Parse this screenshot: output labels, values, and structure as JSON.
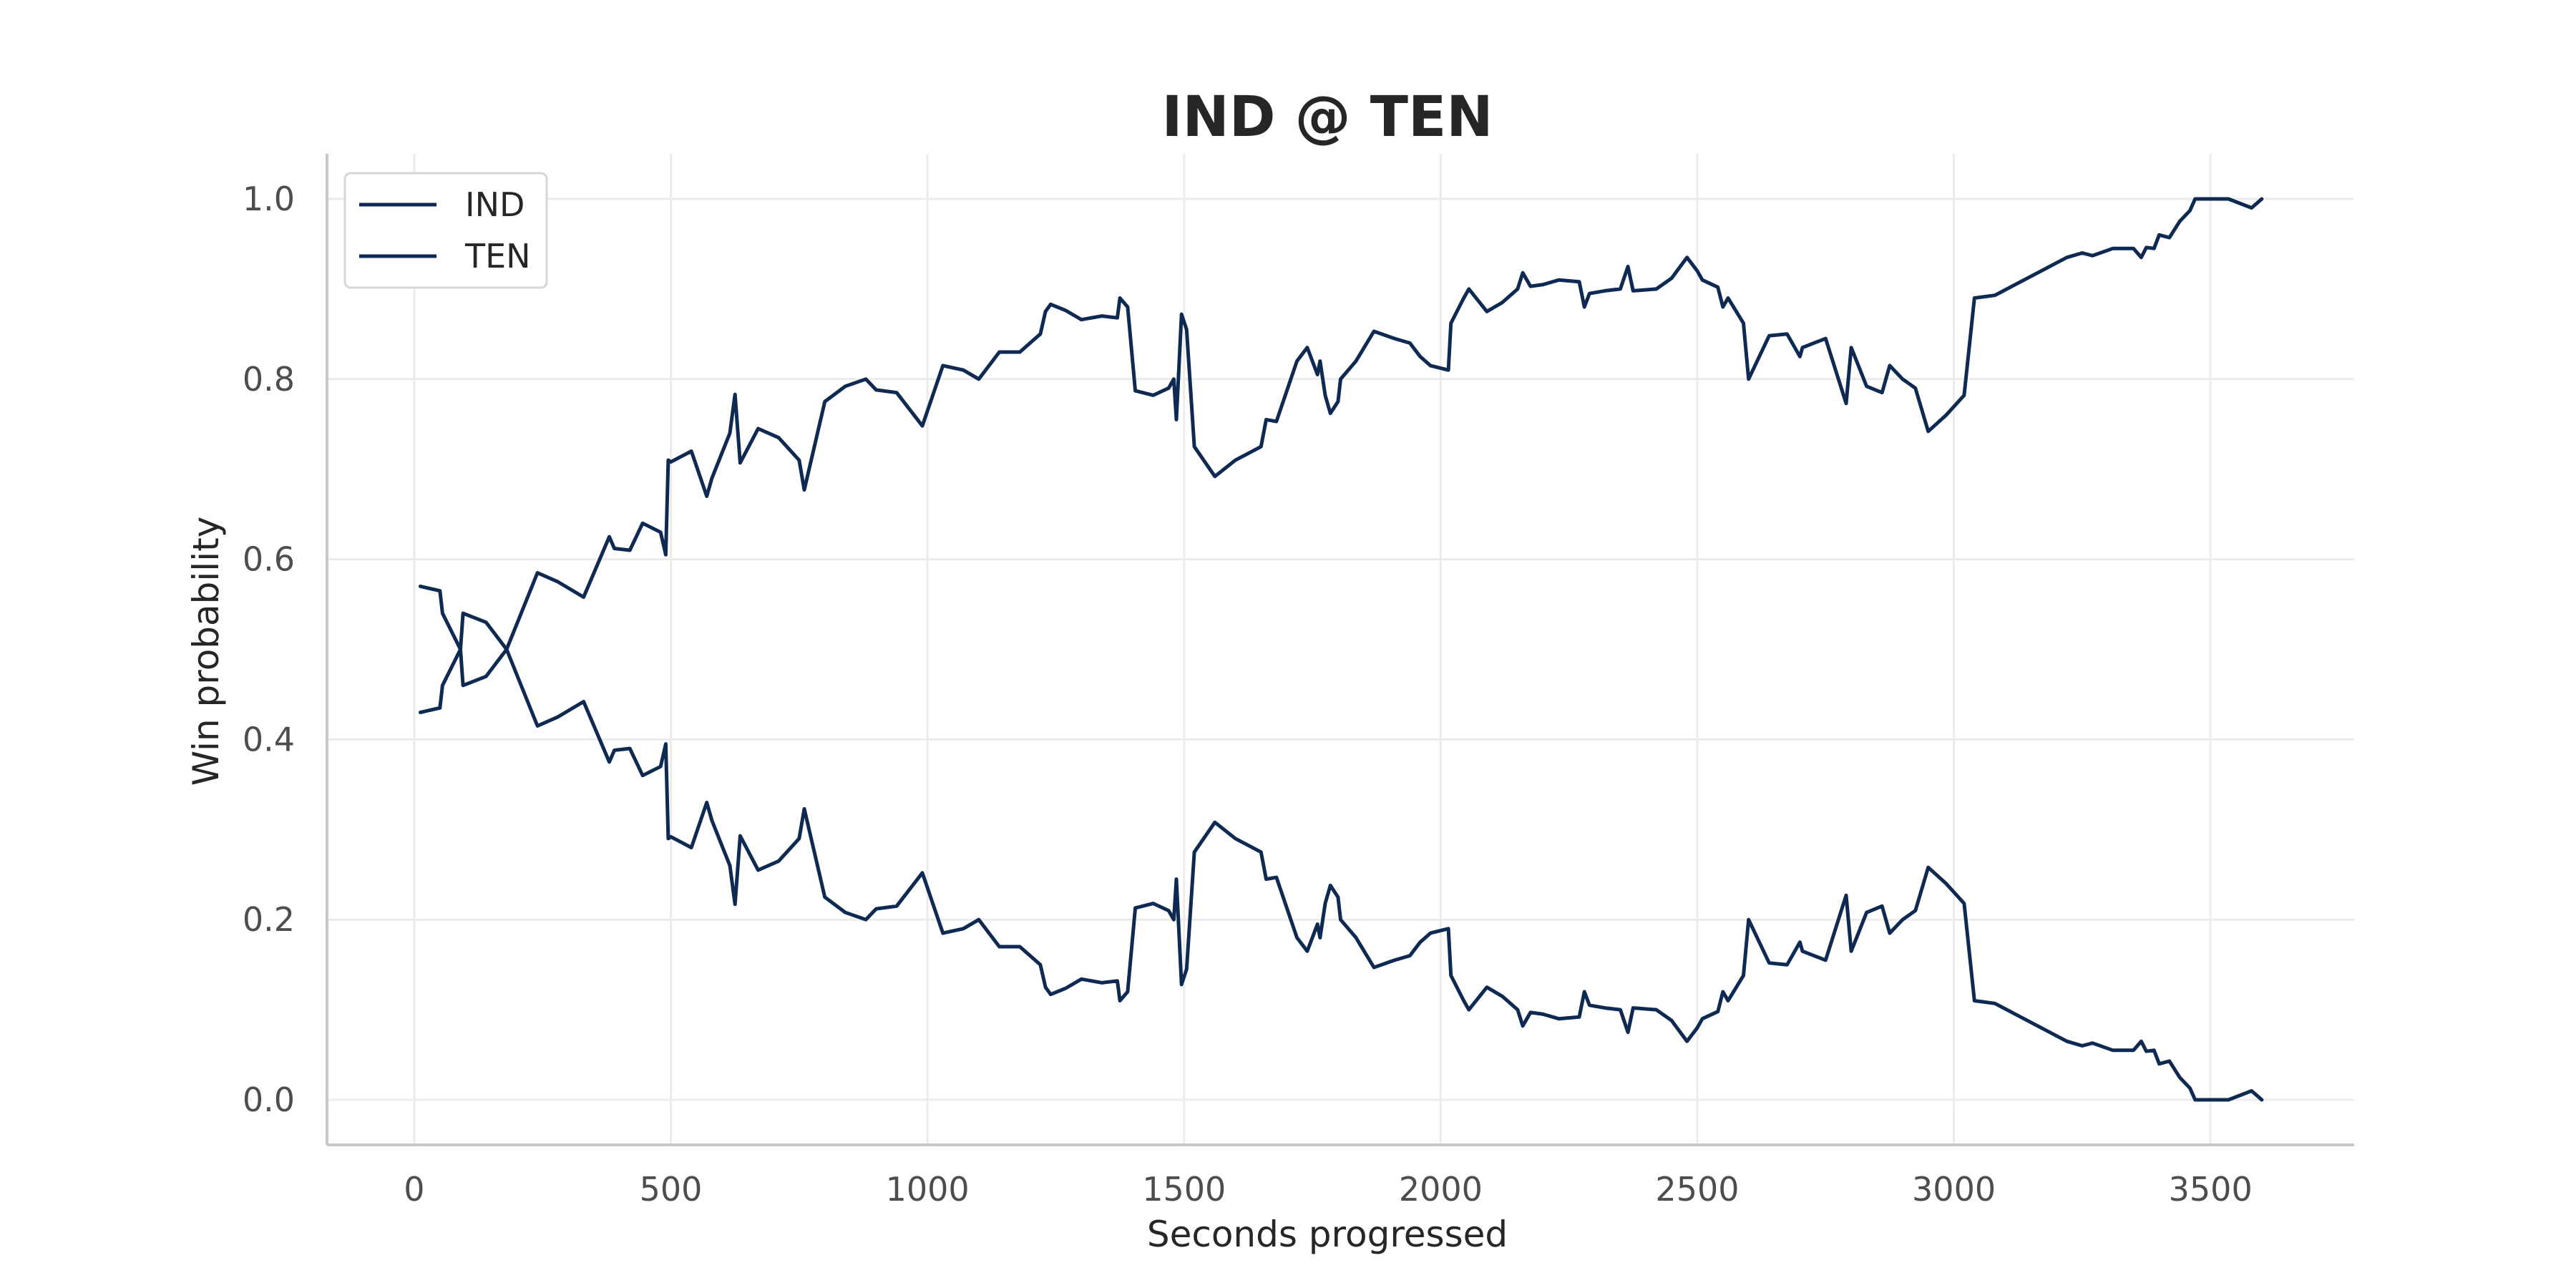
{
  "chart_data": {
    "type": "line",
    "title": "IND @ TEN",
    "xlabel": "Seconds progressed",
    "ylabel": "Win probability",
    "xlim": [
      -170,
      3780
    ],
    "ylim": [
      -0.05,
      1.05
    ],
    "xticks": [
      0,
      500,
      1000,
      1500,
      2000,
      2500,
      3000,
      3500
    ],
    "yticks": [
      0.0,
      0.2,
      0.4,
      0.6,
      0.8,
      1.0
    ],
    "grid": true,
    "legend": "top-left",
    "line_color": "#0f2a52",
    "series": [
      {
        "name": "IND",
        "points": [
          [
            12,
            0.43
          ],
          [
            50,
            0.435
          ],
          [
            55,
            0.46
          ],
          [
            90,
            0.5
          ],
          [
            95,
            0.54
          ],
          [
            140,
            0.53
          ],
          [
            180,
            0.5
          ],
          [
            240,
            0.585
          ],
          [
            280,
            0.575
          ],
          [
            330,
            0.558
          ],
          [
            380,
            0.625
          ],
          [
            390,
            0.612
          ],
          [
            420,
            0.61
          ],
          [
            445,
            0.64
          ],
          [
            480,
            0.63
          ],
          [
            490,
            0.605
          ],
          [
            495,
            0.71
          ],
          [
            500,
            0.708
          ],
          [
            540,
            0.72
          ],
          [
            570,
            0.67
          ],
          [
            580,
            0.69
          ],
          [
            615,
            0.74
          ],
          [
            625,
            0.783
          ],
          [
            635,
            0.707
          ],
          [
            670,
            0.745
          ],
          [
            710,
            0.735
          ],
          [
            750,
            0.71
          ],
          [
            760,
            0.677
          ],
          [
            800,
            0.775
          ],
          [
            840,
            0.792
          ],
          [
            880,
            0.8
          ],
          [
            900,
            0.788
          ],
          [
            940,
            0.785
          ],
          [
            990,
            0.748
          ],
          [
            1030,
            0.815
          ],
          [
            1070,
            0.81
          ],
          [
            1100,
            0.8
          ],
          [
            1140,
            0.83
          ],
          [
            1180,
            0.83
          ],
          [
            1220,
            0.85
          ],
          [
            1230,
            0.875
          ],
          [
            1240,
            0.883
          ],
          [
            1270,
            0.876
          ],
          [
            1300,
            0.866
          ],
          [
            1340,
            0.87
          ],
          [
            1370,
            0.868
          ],
          [
            1375,
            0.89
          ],
          [
            1390,
            0.88
          ],
          [
            1405,
            0.787
          ],
          [
            1440,
            0.782
          ],
          [
            1470,
            0.79
          ],
          [
            1480,
            0.8
          ],
          [
            1485,
            0.755
          ],
          [
            1495,
            0.872
          ],
          [
            1505,
            0.855
          ],
          [
            1520,
            0.725
          ],
          [
            1560,
            0.692
          ],
          [
            1600,
            0.71
          ],
          [
            1650,
            0.725
          ],
          [
            1660,
            0.755
          ],
          [
            1680,
            0.753
          ],
          [
            1720,
            0.82
          ],
          [
            1740,
            0.835
          ],
          [
            1760,
            0.805
          ],
          [
            1765,
            0.82
          ],
          [
            1775,
            0.782
          ],
          [
            1785,
            0.762
          ],
          [
            1800,
            0.775
          ],
          [
            1805,
            0.8
          ],
          [
            1835,
            0.82
          ],
          [
            1870,
            0.853
          ],
          [
            1910,
            0.845
          ],
          [
            1940,
            0.84
          ],
          [
            1960,
            0.825
          ],
          [
            1980,
            0.815
          ],
          [
            2015,
            0.81
          ],
          [
            2020,
            0.862
          ],
          [
            2045,
            0.89
          ],
          [
            2055,
            0.9
          ],
          [
            2090,
            0.875
          ],
          [
            2120,
            0.885
          ],
          [
            2150,
            0.9
          ],
          [
            2160,
            0.918
          ],
          [
            2175,
            0.903
          ],
          [
            2200,
            0.905
          ],
          [
            2230,
            0.91
          ],
          [
            2270,
            0.908
          ],
          [
            2280,
            0.88
          ],
          [
            2290,
            0.895
          ],
          [
            2320,
            0.898
          ],
          [
            2350,
            0.9
          ],
          [
            2365,
            0.925
          ],
          [
            2375,
            0.898
          ],
          [
            2420,
            0.9
          ],
          [
            2450,
            0.912
          ],
          [
            2480,
            0.935
          ],
          [
            2500,
            0.92
          ],
          [
            2510,
            0.91
          ],
          [
            2540,
            0.902
          ],
          [
            2550,
            0.88
          ],
          [
            2560,
            0.89
          ],
          [
            2590,
            0.862
          ],
          [
            2600,
            0.8
          ],
          [
            2640,
            0.848
          ],
          [
            2675,
            0.85
          ],
          [
            2700,
            0.825
          ],
          [
            2705,
            0.835
          ],
          [
            2750,
            0.845
          ],
          [
            2790,
            0.773
          ],
          [
            2800,
            0.835
          ],
          [
            2830,
            0.792
          ],
          [
            2860,
            0.785
          ],
          [
            2875,
            0.815
          ],
          [
            2900,
            0.8
          ],
          [
            2925,
            0.79
          ],
          [
            2950,
            0.742
          ],
          [
            2985,
            0.76
          ],
          [
            3020,
            0.782
          ],
          [
            3040,
            0.89
          ],
          [
            3080,
            0.893
          ],
          [
            3120,
            0.905
          ],
          [
            3170,
            0.92
          ],
          [
            3220,
            0.935
          ],
          [
            3250,
            0.94
          ],
          [
            3270,
            0.937
          ],
          [
            3310,
            0.945
          ],
          [
            3350,
            0.945
          ],
          [
            3365,
            0.935
          ],
          [
            3375,
            0.946
          ],
          [
            3390,
            0.945
          ],
          [
            3400,
            0.96
          ],
          [
            3420,
            0.957
          ],
          [
            3440,
            0.975
          ],
          [
            3460,
            0.987
          ],
          [
            3470,
            1.0
          ],
          [
            3500,
            1.0
          ],
          [
            3520,
            1.0
          ],
          [
            3535,
            1.0
          ],
          [
            3580,
            0.99
          ],
          [
            3600,
            1.0
          ]
        ]
      },
      {
        "name": "TEN",
        "points": [
          [
            12,
            0.57
          ],
          [
            50,
            0.565
          ],
          [
            55,
            0.54
          ],
          [
            90,
            0.5
          ],
          [
            95,
            0.46
          ],
          [
            140,
            0.47
          ],
          [
            180,
            0.5
          ],
          [
            240,
            0.415
          ],
          [
            280,
            0.425
          ],
          [
            330,
            0.442
          ],
          [
            380,
            0.375
          ],
          [
            390,
            0.388
          ],
          [
            420,
            0.39
          ],
          [
            445,
            0.36
          ],
          [
            480,
            0.37
          ],
          [
            490,
            0.395
          ],
          [
            495,
            0.29
          ],
          [
            500,
            0.292
          ],
          [
            540,
            0.28
          ],
          [
            570,
            0.33
          ],
          [
            580,
            0.31
          ],
          [
            615,
            0.26
          ],
          [
            625,
            0.217
          ],
          [
            635,
            0.293
          ],
          [
            670,
            0.255
          ],
          [
            710,
            0.265
          ],
          [
            750,
            0.29
          ],
          [
            760,
            0.323
          ],
          [
            800,
            0.225
          ],
          [
            840,
            0.208
          ],
          [
            880,
            0.2
          ],
          [
            900,
            0.212
          ],
          [
            940,
            0.215
          ],
          [
            990,
            0.252
          ],
          [
            1030,
            0.185
          ],
          [
            1070,
            0.19
          ],
          [
            1100,
            0.2
          ],
          [
            1140,
            0.17
          ],
          [
            1180,
            0.17
          ],
          [
            1220,
            0.15
          ],
          [
            1230,
            0.125
          ],
          [
            1240,
            0.117
          ],
          [
            1270,
            0.124
          ],
          [
            1300,
            0.134
          ],
          [
            1340,
            0.13
          ],
          [
            1370,
            0.132
          ],
          [
            1375,
            0.11
          ],
          [
            1390,
            0.12
          ],
          [
            1405,
            0.213
          ],
          [
            1440,
            0.218
          ],
          [
            1470,
            0.21
          ],
          [
            1480,
            0.2
          ],
          [
            1485,
            0.245
          ],
          [
            1495,
            0.128
          ],
          [
            1505,
            0.145
          ],
          [
            1520,
            0.275
          ],
          [
            1560,
            0.308
          ],
          [
            1600,
            0.29
          ],
          [
            1650,
            0.275
          ],
          [
            1660,
            0.245
          ],
          [
            1680,
            0.247
          ],
          [
            1720,
            0.18
          ],
          [
            1740,
            0.165
          ],
          [
            1760,
            0.195
          ],
          [
            1765,
            0.18
          ],
          [
            1775,
            0.218
          ],
          [
            1785,
            0.238
          ],
          [
            1800,
            0.225
          ],
          [
            1805,
            0.2
          ],
          [
            1835,
            0.18
          ],
          [
            1870,
            0.147
          ],
          [
            1910,
            0.155
          ],
          [
            1940,
            0.16
          ],
          [
            1960,
            0.175
          ],
          [
            1980,
            0.185
          ],
          [
            2015,
            0.19
          ],
          [
            2020,
            0.138
          ],
          [
            2045,
            0.11
          ],
          [
            2055,
            0.1
          ],
          [
            2090,
            0.125
          ],
          [
            2120,
            0.115
          ],
          [
            2150,
            0.1
          ],
          [
            2160,
            0.082
          ],
          [
            2175,
            0.097
          ],
          [
            2200,
            0.095
          ],
          [
            2230,
            0.09
          ],
          [
            2270,
            0.092
          ],
          [
            2280,
            0.12
          ],
          [
            2290,
            0.105
          ],
          [
            2320,
            0.102
          ],
          [
            2350,
            0.1
          ],
          [
            2365,
            0.075
          ],
          [
            2375,
            0.102
          ],
          [
            2420,
            0.1
          ],
          [
            2450,
            0.088
          ],
          [
            2480,
            0.065
          ],
          [
            2500,
            0.08
          ],
          [
            2510,
            0.09
          ],
          [
            2540,
            0.098
          ],
          [
            2550,
            0.12
          ],
          [
            2560,
            0.11
          ],
          [
            2590,
            0.138
          ],
          [
            2600,
            0.2
          ],
          [
            2640,
            0.152
          ],
          [
            2675,
            0.15
          ],
          [
            2700,
            0.175
          ],
          [
            2705,
            0.165
          ],
          [
            2750,
            0.155
          ],
          [
            2790,
            0.227
          ],
          [
            2800,
            0.165
          ],
          [
            2830,
            0.208
          ],
          [
            2860,
            0.215
          ],
          [
            2875,
            0.185
          ],
          [
            2900,
            0.2
          ],
          [
            2925,
            0.21
          ],
          [
            2950,
            0.258
          ],
          [
            2985,
            0.24
          ],
          [
            3020,
            0.218
          ],
          [
            3040,
            0.11
          ],
          [
            3080,
            0.107
          ],
          [
            3120,
            0.095
          ],
          [
            3170,
            0.08
          ],
          [
            3220,
            0.065
          ],
          [
            3250,
            0.06
          ],
          [
            3270,
            0.063
          ],
          [
            3310,
            0.055
          ],
          [
            3350,
            0.055
          ],
          [
            3365,
            0.065
          ],
          [
            3375,
            0.054
          ],
          [
            3390,
            0.055
          ],
          [
            3400,
            0.04
          ],
          [
            3420,
            0.043
          ],
          [
            3440,
            0.025
          ],
          [
            3460,
            0.013
          ],
          [
            3470,
            0.0
          ],
          [
            3500,
            0.0
          ],
          [
            3520,
            0.0
          ],
          [
            3535,
            0.0
          ],
          [
            3580,
            0.01
          ],
          [
            3600,
            0.0
          ]
        ]
      }
    ]
  }
}
